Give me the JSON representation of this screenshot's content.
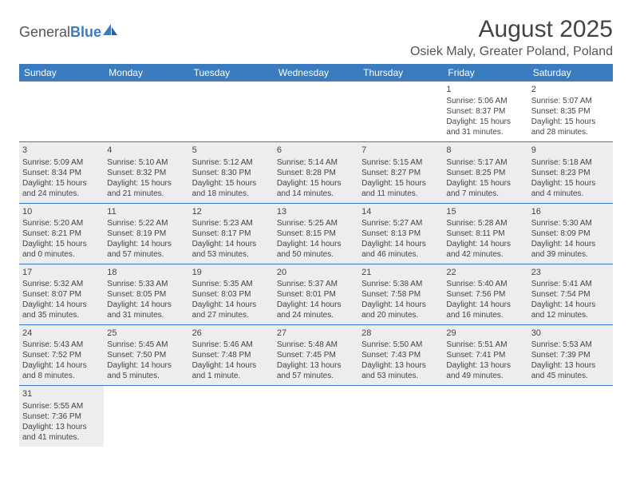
{
  "logo": {
    "text1": "General",
    "text2": "Blue"
  },
  "title": "August 2025",
  "location": "Osiek Maly, Greater Poland, Poland",
  "day_headers": [
    "Sunday",
    "Monday",
    "Tuesday",
    "Wednesday",
    "Thursday",
    "Friday",
    "Saturday"
  ],
  "colors": {
    "accent": "#3b7bbf",
    "shaded": "#ededed",
    "text": "#444444",
    "border": "#3b7bbf"
  },
  "weeks": [
    [
      {
        "day": "",
        "sunrise": "",
        "sunset": "",
        "daylight": "",
        "shaded": false
      },
      {
        "day": "",
        "sunrise": "",
        "sunset": "",
        "daylight": "",
        "shaded": false
      },
      {
        "day": "",
        "sunrise": "",
        "sunset": "",
        "daylight": "",
        "shaded": false
      },
      {
        "day": "",
        "sunrise": "",
        "sunset": "",
        "daylight": "",
        "shaded": false
      },
      {
        "day": "",
        "sunrise": "",
        "sunset": "",
        "daylight": "",
        "shaded": false
      },
      {
        "day": "1",
        "sunrise": "Sunrise: 5:06 AM",
        "sunset": "Sunset: 8:37 PM",
        "daylight": "Daylight: 15 hours and 31 minutes.",
        "shaded": false
      },
      {
        "day": "2",
        "sunrise": "Sunrise: 5:07 AM",
        "sunset": "Sunset: 8:35 PM",
        "daylight": "Daylight: 15 hours and 28 minutes.",
        "shaded": false
      }
    ],
    [
      {
        "day": "3",
        "sunrise": "Sunrise: 5:09 AM",
        "sunset": "Sunset: 8:34 PM",
        "daylight": "Daylight: 15 hours and 24 minutes.",
        "shaded": true
      },
      {
        "day": "4",
        "sunrise": "Sunrise: 5:10 AM",
        "sunset": "Sunset: 8:32 PM",
        "daylight": "Daylight: 15 hours and 21 minutes.",
        "shaded": true
      },
      {
        "day": "5",
        "sunrise": "Sunrise: 5:12 AM",
        "sunset": "Sunset: 8:30 PM",
        "daylight": "Daylight: 15 hours and 18 minutes.",
        "shaded": true
      },
      {
        "day": "6",
        "sunrise": "Sunrise: 5:14 AM",
        "sunset": "Sunset: 8:28 PM",
        "daylight": "Daylight: 15 hours and 14 minutes.",
        "shaded": true
      },
      {
        "day": "7",
        "sunrise": "Sunrise: 5:15 AM",
        "sunset": "Sunset: 8:27 PM",
        "daylight": "Daylight: 15 hours and 11 minutes.",
        "shaded": true
      },
      {
        "day": "8",
        "sunrise": "Sunrise: 5:17 AM",
        "sunset": "Sunset: 8:25 PM",
        "daylight": "Daylight: 15 hours and 7 minutes.",
        "shaded": true
      },
      {
        "day": "9",
        "sunrise": "Sunrise: 5:18 AM",
        "sunset": "Sunset: 8:23 PM",
        "daylight": "Daylight: 15 hours and 4 minutes.",
        "shaded": true
      }
    ],
    [
      {
        "day": "10",
        "sunrise": "Sunrise: 5:20 AM",
        "sunset": "Sunset: 8:21 PM",
        "daylight": "Daylight: 15 hours and 0 minutes.",
        "shaded": true
      },
      {
        "day": "11",
        "sunrise": "Sunrise: 5:22 AM",
        "sunset": "Sunset: 8:19 PM",
        "daylight": "Daylight: 14 hours and 57 minutes.",
        "shaded": true
      },
      {
        "day": "12",
        "sunrise": "Sunrise: 5:23 AM",
        "sunset": "Sunset: 8:17 PM",
        "daylight": "Daylight: 14 hours and 53 minutes.",
        "shaded": true
      },
      {
        "day": "13",
        "sunrise": "Sunrise: 5:25 AM",
        "sunset": "Sunset: 8:15 PM",
        "daylight": "Daylight: 14 hours and 50 minutes.",
        "shaded": true
      },
      {
        "day": "14",
        "sunrise": "Sunrise: 5:27 AM",
        "sunset": "Sunset: 8:13 PM",
        "daylight": "Daylight: 14 hours and 46 minutes.",
        "shaded": true
      },
      {
        "day": "15",
        "sunrise": "Sunrise: 5:28 AM",
        "sunset": "Sunset: 8:11 PM",
        "daylight": "Daylight: 14 hours and 42 minutes.",
        "shaded": true
      },
      {
        "day": "16",
        "sunrise": "Sunrise: 5:30 AM",
        "sunset": "Sunset: 8:09 PM",
        "daylight": "Daylight: 14 hours and 39 minutes.",
        "shaded": true
      }
    ],
    [
      {
        "day": "17",
        "sunrise": "Sunrise: 5:32 AM",
        "sunset": "Sunset: 8:07 PM",
        "daylight": "Daylight: 14 hours and 35 minutes.",
        "shaded": true
      },
      {
        "day": "18",
        "sunrise": "Sunrise: 5:33 AM",
        "sunset": "Sunset: 8:05 PM",
        "daylight": "Daylight: 14 hours and 31 minutes.",
        "shaded": true
      },
      {
        "day": "19",
        "sunrise": "Sunrise: 5:35 AM",
        "sunset": "Sunset: 8:03 PM",
        "daylight": "Daylight: 14 hours and 27 minutes.",
        "shaded": true
      },
      {
        "day": "20",
        "sunrise": "Sunrise: 5:37 AM",
        "sunset": "Sunset: 8:01 PM",
        "daylight": "Daylight: 14 hours and 24 minutes.",
        "shaded": true
      },
      {
        "day": "21",
        "sunrise": "Sunrise: 5:38 AM",
        "sunset": "Sunset: 7:58 PM",
        "daylight": "Daylight: 14 hours and 20 minutes.",
        "shaded": true
      },
      {
        "day": "22",
        "sunrise": "Sunrise: 5:40 AM",
        "sunset": "Sunset: 7:56 PM",
        "daylight": "Daylight: 14 hours and 16 minutes.",
        "shaded": true
      },
      {
        "day": "23",
        "sunrise": "Sunrise: 5:41 AM",
        "sunset": "Sunset: 7:54 PM",
        "daylight": "Daylight: 14 hours and 12 minutes.",
        "shaded": true
      }
    ],
    [
      {
        "day": "24",
        "sunrise": "Sunrise: 5:43 AM",
        "sunset": "Sunset: 7:52 PM",
        "daylight": "Daylight: 14 hours and 8 minutes.",
        "shaded": true
      },
      {
        "day": "25",
        "sunrise": "Sunrise: 5:45 AM",
        "sunset": "Sunset: 7:50 PM",
        "daylight": "Daylight: 14 hours and 5 minutes.",
        "shaded": true
      },
      {
        "day": "26",
        "sunrise": "Sunrise: 5:46 AM",
        "sunset": "Sunset: 7:48 PM",
        "daylight": "Daylight: 14 hours and 1 minute.",
        "shaded": true
      },
      {
        "day": "27",
        "sunrise": "Sunrise: 5:48 AM",
        "sunset": "Sunset: 7:45 PM",
        "daylight": "Daylight: 13 hours and 57 minutes.",
        "shaded": true
      },
      {
        "day": "28",
        "sunrise": "Sunrise: 5:50 AM",
        "sunset": "Sunset: 7:43 PM",
        "daylight": "Daylight: 13 hours and 53 minutes.",
        "shaded": true
      },
      {
        "day": "29",
        "sunrise": "Sunrise: 5:51 AM",
        "sunset": "Sunset: 7:41 PM",
        "daylight": "Daylight: 13 hours and 49 minutes.",
        "shaded": true
      },
      {
        "day": "30",
        "sunrise": "Sunrise: 5:53 AM",
        "sunset": "Sunset: 7:39 PM",
        "daylight": "Daylight: 13 hours and 45 minutes.",
        "shaded": true
      }
    ],
    [
      {
        "day": "31",
        "sunrise": "Sunrise: 5:55 AM",
        "sunset": "Sunset: 7:36 PM",
        "daylight": "Daylight: 13 hours and 41 minutes.",
        "shaded": true
      },
      {
        "day": "",
        "sunrise": "",
        "sunset": "",
        "daylight": "",
        "shaded": false
      },
      {
        "day": "",
        "sunrise": "",
        "sunset": "",
        "daylight": "",
        "shaded": false
      },
      {
        "day": "",
        "sunrise": "",
        "sunset": "",
        "daylight": "",
        "shaded": false
      },
      {
        "day": "",
        "sunrise": "",
        "sunset": "",
        "daylight": "",
        "shaded": false
      },
      {
        "day": "",
        "sunrise": "",
        "sunset": "",
        "daylight": "",
        "shaded": false
      },
      {
        "day": "",
        "sunrise": "",
        "sunset": "",
        "daylight": "",
        "shaded": false
      }
    ]
  ]
}
